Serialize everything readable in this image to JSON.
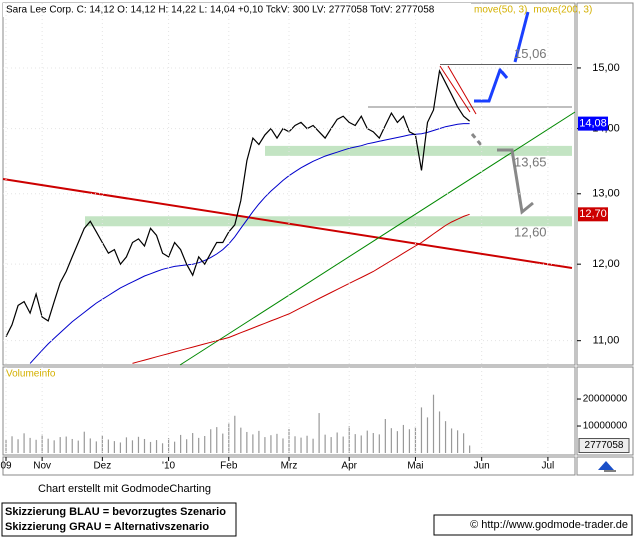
{
  "chart_data": [
    {
      "type": "line",
      "title": "Sara Lee Corp.  C: 14,12 O: 14,12 H: 14,22 L: 14,04 +0,10 TckV: 300 LV: 2777058 TotV: 2777058",
      "log_scale": true,
      "categories": [
        "09",
        null,
        null,
        null,
        null,
        null,
        "Nov",
        null,
        null,
        null,
        null,
        null,
        null,
        null,
        null,
        null,
        "Dez",
        null,
        null,
        null,
        null,
        null,
        null,
        null,
        null,
        null,
        null,
        "'10",
        null,
        null,
        null,
        null,
        null,
        null,
        null,
        null,
        null,
        "Feb",
        null,
        null,
        null,
        null,
        null,
        null,
        null,
        null,
        null,
        "Mrz",
        null,
        null,
        null,
        null,
        null,
        null,
        null,
        null,
        null,
        "Apr",
        null,
        null,
        null,
        null,
        null,
        null,
        null,
        null,
        null,
        null,
        "Mai",
        null,
        null,
        null,
        null,
        null,
        null,
        null,
        null,
        null,
        null,
        "Jun",
        null,
        null,
        null,
        null,
        null,
        null,
        null,
        null,
        null,
        null,
        "Jul",
        null,
        null,
        null,
        null
      ],
      "values": [
        11.05,
        11.2,
        11.45,
        11.5,
        11.35,
        11.6,
        11.3,
        11.25,
        11.5,
        11.75,
        11.9,
        12.1,
        12.3,
        12.5,
        12.6,
        12.45,
        12.3,
        12.15,
        12.2,
        12.0,
        12.1,
        12.3,
        12.35,
        12.25,
        12.5,
        12.4,
        12.15,
        12.1,
        12.3,
        12.2,
        12.0,
        11.85,
        12.1,
        12.0,
        12.15,
        12.3,
        12.3,
        12.45,
        12.55,
        12.9,
        13.5,
        13.85,
        13.75,
        13.9,
        14.0,
        13.85,
        14.0,
        13.95,
        14.05,
        14.1,
        14.0,
        14.05,
        13.95,
        13.85,
        14.0,
        14.15,
        14.2,
        14.1,
        14.05,
        14.2,
        14.0,
        13.95,
        13.85,
        14.05,
        14.25,
        14.1,
        14.2,
        13.95,
        13.9,
        13.35,
        14.1,
        14.3,
        14.95,
        14.75,
        14.55,
        14.35,
        14.2,
        14.12,
        null,
        null,
        null,
        null,
        null,
        null,
        null,
        null,
        null,
        null,
        null,
        null,
        null,
        null,
        null,
        null,
        null
      ],
      "color": "#000000",
      "series": [
        {
          "name": "move(50, 3)",
          "color": "#0000cc",
          "values": [
            null,
            null,
            null,
            null,
            10.72,
            10.8,
            10.88,
            10.96,
            11.03,
            11.1,
            11.17,
            11.24,
            11.3,
            11.36,
            11.42,
            11.48,
            11.53,
            11.58,
            11.63,
            11.68,
            11.72,
            11.76,
            11.8,
            11.84,
            11.87,
            11.9,
            11.93,
            11.95,
            11.97,
            11.98,
            11.99,
            12.0,
            12.02,
            12.05,
            12.09,
            12.14,
            12.2,
            12.28,
            12.38,
            12.5,
            12.62,
            12.74,
            12.85,
            12.95,
            13.04,
            13.12,
            13.2,
            13.27,
            13.33,
            13.39,
            13.44,
            13.49,
            13.53,
            13.57,
            13.6,
            13.63,
            13.66,
            13.69,
            13.71,
            13.73,
            13.76,
            13.78,
            13.8,
            13.82,
            13.84,
            13.86,
            13.88,
            13.9,
            13.91,
            13.92,
            13.94,
            13.97,
            14.0,
            14.03,
            14.05,
            14.07,
            14.08,
            14.08,
            null,
            null,
            null,
            null,
            null,
            null,
            null,
            null,
            null,
            null,
            null,
            null,
            null,
            null,
            null,
            null,
            null
          ]
        },
        {
          "name": "move(200, 3)",
          "color": "#cc0000",
          "values": [
            null,
            null,
            null,
            null,
            null,
            null,
            null,
            null,
            null,
            null,
            null,
            null,
            null,
            null,
            null,
            null,
            null,
            null,
            null,
            null,
            null,
            10.72,
            10.74,
            10.76,
            10.78,
            10.8,
            10.82,
            10.84,
            10.86,
            10.88,
            10.9,
            10.92,
            10.94,
            10.96,
            10.98,
            11.0,
            11.02,
            11.04,
            11.07,
            11.1,
            11.13,
            11.16,
            11.19,
            11.22,
            11.25,
            11.28,
            11.31,
            11.34,
            11.38,
            11.42,
            11.46,
            11.5,
            11.54,
            11.58,
            11.62,
            11.66,
            11.7,
            11.74,
            11.78,
            11.82,
            11.86,
            11.9,
            11.95,
            12.0,
            12.05,
            12.1,
            12.15,
            12.2,
            12.25,
            12.3,
            12.36,
            12.42,
            12.48,
            12.54,
            12.59,
            12.63,
            12.67,
            12.7,
            null,
            null,
            null,
            null,
            null,
            null,
            null,
            null,
            null,
            null,
            null,
            null,
            null,
            null,
            null,
            null,
            null
          ]
        }
      ],
      "ylim": [
        10.7,
        16.15
      ],
      "yticks": [
        {
          "value": 11,
          "label": "11,00"
        },
        {
          "value": 12,
          "label": "12,00"
        },
        {
          "value": 13,
          "label": "13,00"
        },
        {
          "value": 14,
          "label": "14,00"
        },
        {
          "value": 15,
          "label": "15,00"
        }
      ],
      "levels": [
        {
          "value": 15.06,
          "label": "15,06"
        },
        {
          "value": 13.65,
          "label": "13,65"
        },
        {
          "value": 12.6,
          "label": "12,60"
        }
      ],
      "price_tags": [
        {
          "value": 14.08,
          "label": "14,08",
          "color": "#0000ff"
        },
        {
          "value": 12.7,
          "label": "12,70",
          "color": "#cc0000"
        }
      ]
    },
    {
      "type": "bar",
      "title": "Volumeinfo",
      "color": "#999999",
      "values": [
        4800000,
        6200000,
        5100000,
        7300000,
        5600000,
        4900000,
        6800000,
        5300000,
        4700000,
        5900000,
        6100000,
        5200000,
        4600000,
        7900000,
        5400000,
        4300000,
        6500000,
        5000000,
        4400000,
        3900000,
        5800000,
        4700000,
        6000000,
        5200000,
        4100000,
        4800000,
        3600000,
        5500000,
        4200000,
        6700000,
        5100000,
        7400000,
        5600000,
        6300000,
        8800000,
        9600000,
        7200000,
        11200000,
        13800000,
        9400000,
        7800000,
        6900000,
        8200000,
        5900000,
        6600000,
        7100000,
        5400000,
        8900000,
        6200000,
        5700000,
        6400000,
        5300000,
        14800000,
        6800000,
        5900000,
        7600000,
        6100000,
        9900000,
        7000000,
        6500000,
        8300000,
        7400000,
        6900000,
        12600000,
        9200000,
        8100000,
        10400000,
        8800000,
        9700000,
        16900000,
        13200000,
        21600000,
        15400000,
        11800000,
        9100000,
        8400000,
        7300000,
        2777058,
        null,
        null,
        null,
        null,
        null,
        null,
        null,
        null,
        null,
        null,
        null,
        null,
        null,
        null,
        null,
        null,
        null
      ],
      "ylim": [
        0,
        31500000
      ],
      "yticks": [
        10000000,
        20000000
      ]
    }
  ],
  "footer": {
    "credit": "Chart erstellt mit GodmodeCharting",
    "note_blue": "Skizzierung BLAU = bevorzugtes Szenario",
    "note_gray": "Skizzierung GRAU = Alternativszenario",
    "url": "© http://www.godmode-trader.de"
  }
}
